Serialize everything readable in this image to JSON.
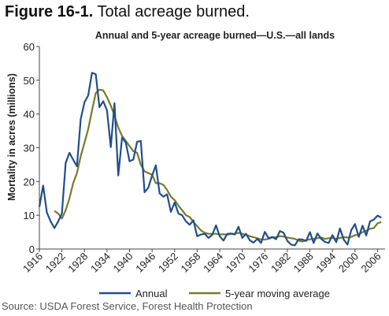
{
  "figure": {
    "number": "Figure 16-1.",
    "caption": "Total acreage burned.",
    "source": "Source: USDA Forest Service, Forest Health Protection"
  },
  "colors": {
    "annual": "#1f4e8c",
    "moving_average": "#7a7a2a",
    "axis": "#444444"
  },
  "chart_data": {
    "type": "line",
    "title": "Annual and 5-year acreage burned—U.S.—all lands",
    "xlabel": "",
    "ylabel": "Mortality in acres (millions)",
    "xlim": [
      1916,
      2008
    ],
    "ylim": [
      0,
      60
    ],
    "yticks": [
      0,
      10,
      20,
      30,
      40,
      50,
      60
    ],
    "xticks": [
      1916,
      1922,
      1928,
      1934,
      1940,
      1946,
      1952,
      1958,
      1964,
      1970,
      1976,
      1982,
      1988,
      1994,
      2000,
      2006
    ],
    "grid": false,
    "legend_position": "bottom",
    "series": [
      {
        "name": "Annual",
        "x": [
          1916,
          1917,
          1918,
          1919,
          1920,
          1921,
          1922,
          1923,
          1924,
          1925,
          1926,
          1927,
          1928,
          1929,
          1930,
          1931,
          1932,
          1933,
          1934,
          1935,
          1936,
          1937,
          1938,
          1939,
          1940,
          1941,
          1942,
          1943,
          1944,
          1945,
          1946,
          1947,
          1948,
          1949,
          1950,
          1951,
          1952,
          1953,
          1954,
          1955,
          1956,
          1957,
          1958,
          1959,
          1960,
          1961,
          1962,
          1963,
          1964,
          1965,
          1966,
          1967,
          1968,
          1969,
          1970,
          1971,
          1972,
          1973,
          1974,
          1975,
          1976,
          1977,
          1978,
          1979,
          1980,
          1981,
          1982,
          1983,
          1984,
          1985,
          1986,
          1987,
          1988,
          1989,
          1990,
          1991,
          1992,
          1993,
          1994,
          1995,
          1996,
          1997,
          1998,
          1999,
          2000,
          2001,
          2002,
          2003,
          2004,
          2005,
          2006,
          2007
        ],
        "values": [
          12.5,
          18.8,
          10.8,
          8.2,
          6.2,
          8.2,
          10.5,
          25.5,
          28.5,
          26.5,
          24.5,
          38.5,
          43.5,
          45.5,
          52.2,
          51.8,
          42.0,
          43.8,
          41.0,
          30.2,
          43.2,
          21.8,
          33.0,
          31.5,
          26.0,
          26.5,
          31.8,
          32.0,
          16.8,
          18.2,
          21.8,
          24.8,
          16.5,
          15.5,
          16.2,
          11.0,
          13.8,
          10.5,
          10.0,
          8.2,
          7.2,
          8.5,
          3.8,
          4.3,
          4.5,
          3.3,
          4.2,
          7.0,
          3.8,
          2.5,
          4.5,
          4.6,
          4.3,
          6.6,
          3.3,
          4.5,
          2.6,
          1.9,
          3.0,
          1.8,
          5.1,
          3.2,
          3.6,
          2.9,
          5.3,
          4.8,
          2.4,
          1.3,
          1.1,
          2.9,
          2.8,
          2.4,
          5.0,
          1.8,
          4.6,
          3.0,
          2.1,
          1.8,
          4.1,
          2.0,
          6.1,
          2.8,
          1.3,
          5.6,
          7.4,
          3.6,
          6.9,
          4.0,
          8.2,
          8.7,
          9.9,
          9.3
        ]
      },
      {
        "name": "5-year moving average",
        "x": [
          1920,
          1921,
          1922,
          1923,
          1924,
          1925,
          1926,
          1927,
          1928,
          1929,
          1930,
          1931,
          1932,
          1933,
          1934,
          1935,
          1936,
          1937,
          1938,
          1939,
          1940,
          1941,
          1942,
          1943,
          1944,
          1945,
          1946,
          1947,
          1948,
          1949,
          1950,
          1951,
          1952,
          1953,
          1954,
          1955,
          1956,
          1957,
          1958,
          1959,
          1960,
          1961,
          1962,
          1963,
          1964,
          1965,
          1966,
          1967,
          1968,
          1969,
          1970,
          1971,
          1972,
          1973,
          1974,
          1975,
          1976,
          1977,
          1978,
          1979,
          1980,
          1981,
          1982,
          1983,
          1984,
          1985,
          1986,
          1987,
          1988,
          1989,
          1990,
          1991,
          1992,
          1993,
          1994,
          1995,
          1996,
          1997,
          1998,
          1999,
          2000,
          2001,
          2002,
          2003,
          2004,
          2005,
          2006,
          2007
        ],
        "values": [
          11.3,
          10.5,
          9.0,
          11.5,
          15.0,
          19.5,
          22.5,
          27.5,
          31.5,
          35.5,
          41.0,
          46.2,
          47.2,
          47.0,
          45.0,
          42.5,
          39.5,
          36.0,
          33.5,
          32.0,
          30.5,
          29.0,
          28.5,
          25.0,
          23.0,
          22.5,
          22.0,
          19.5,
          19.5,
          19.0,
          17.5,
          15.5,
          14.5,
          12.8,
          11.5,
          10.0,
          9.5,
          8.0,
          6.8,
          5.5,
          4.8,
          4.5,
          4.5,
          4.5,
          4.3,
          4.4,
          4.2,
          4.5,
          4.5,
          4.8,
          4.5,
          4.2,
          3.8,
          3.5,
          3.2,
          2.8,
          2.8,
          3.0,
          3.4,
          3.5,
          3.8,
          3.7,
          3.4,
          3.2,
          3.0,
          2.5,
          2.2,
          2.6,
          2.9,
          3.0,
          3.2,
          3.4,
          3.0,
          3.2,
          3.3,
          3.0,
          3.3,
          3.5,
          3.4,
          3.6,
          4.1,
          4.3,
          5.0,
          5.4,
          6.0,
          6.2,
          7.6,
          8.0
        ]
      }
    ]
  }
}
